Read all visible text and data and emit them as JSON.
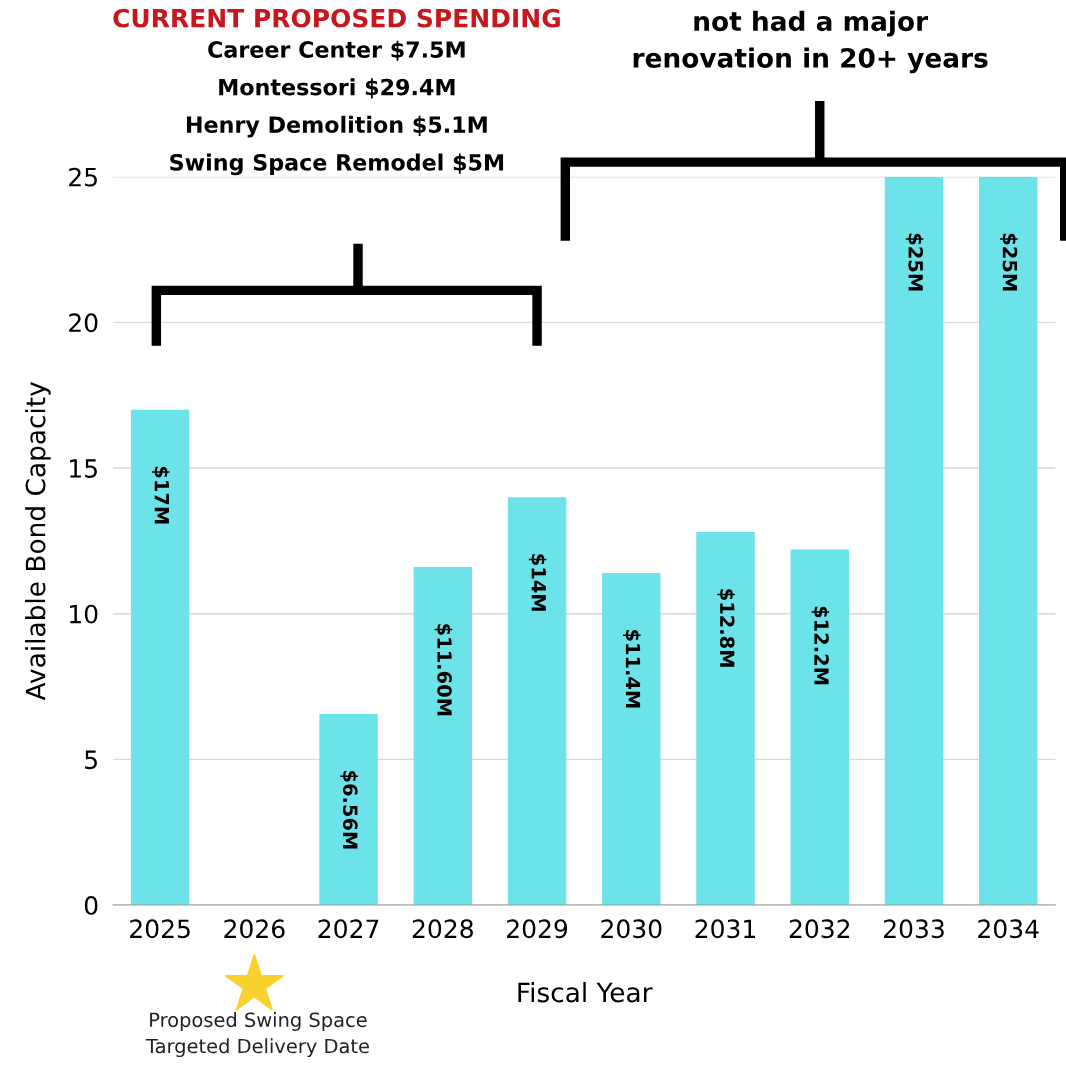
{
  "chart_data": {
    "type": "bar",
    "xlabel": "Fiscal Year",
    "ylabel": "Available Bond Capacity",
    "categories": [
      "2025",
      "2026",
      "2027",
      "2028",
      "2029",
      "2030",
      "2031",
      "2032",
      "2033",
      "2034"
    ],
    "values": [
      17,
      null,
      6.56,
      11.6,
      14,
      11.4,
      12.8,
      12.2,
      25,
      25
    ],
    "value_labels": [
      "$17M",
      null,
      "$6.56M",
      "$11.60M",
      "$14M",
      "$11.4M",
      "$12.8M",
      "$12.2M",
      "$25M",
      "$25M"
    ],
    "color": "#6ce3e8",
    "ylim": [
      0,
      25
    ],
    "yticks": [
      0,
      5,
      10,
      15,
      20,
      25
    ],
    "grid": "y",
    "annotations": [
      "CURRENT PROPOSED SPENDING",
      "Career Center $7.5M\nMontessori $29.4M\nHenry Demolition $5.1M\nSwing Space Remodel $5M",
      "not had a major\nrenovation in 20+ years",
      "Proposed Swing Space\nTargeted Delivery Date"
    ]
  }
}
